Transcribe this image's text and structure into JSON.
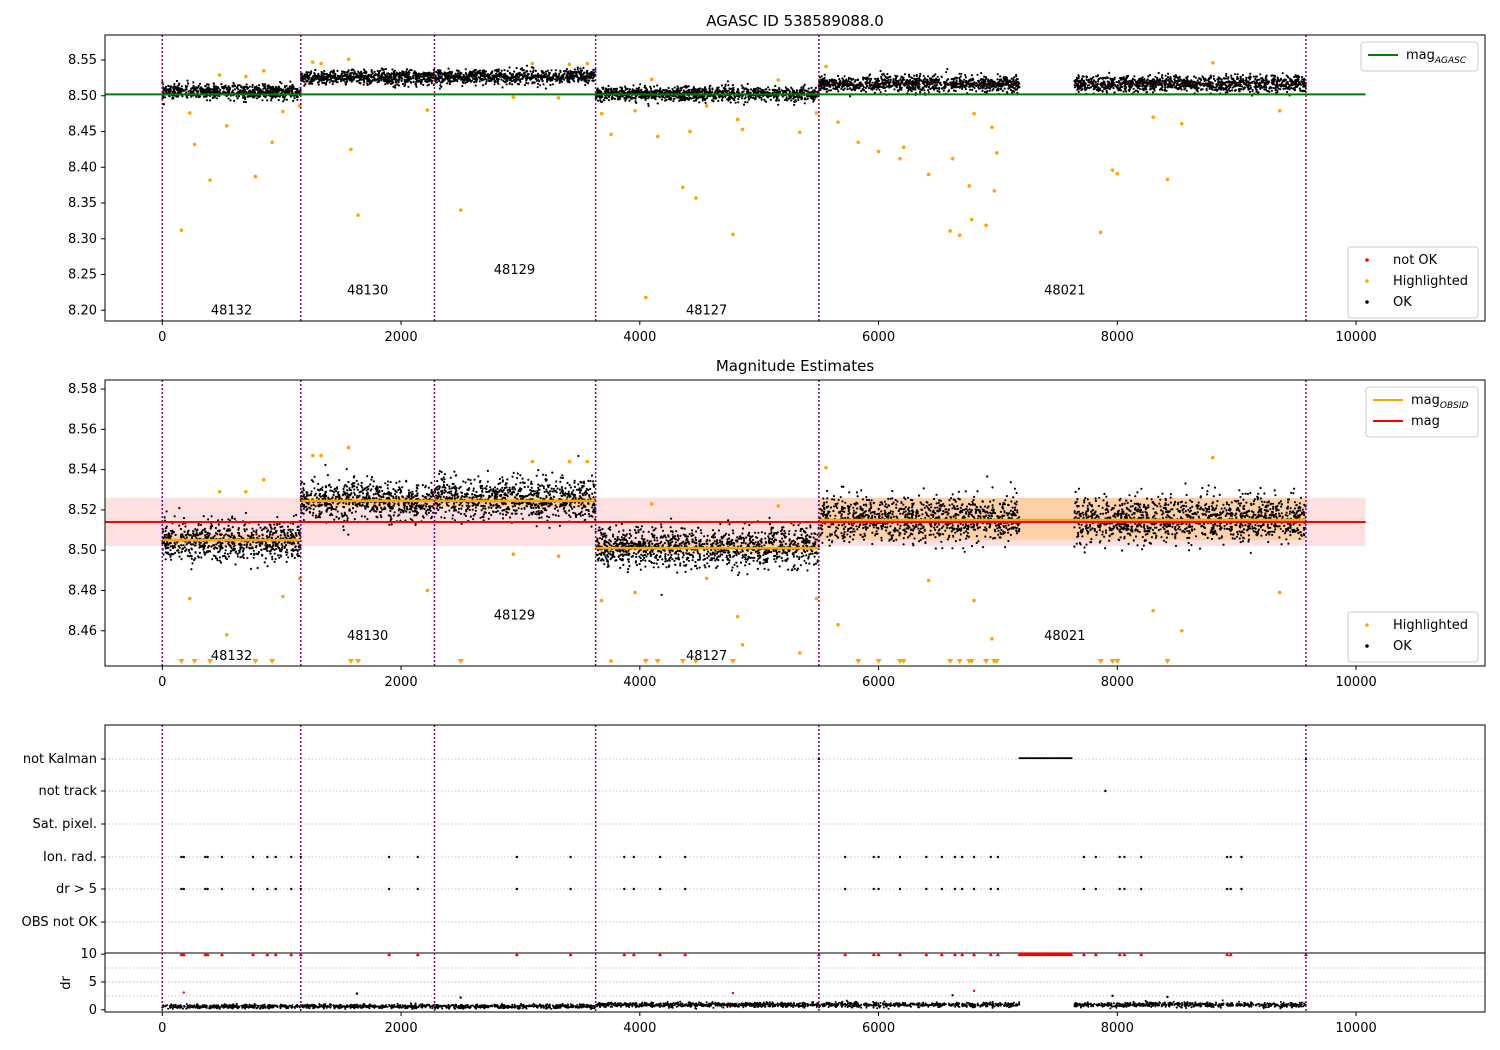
{
  "chart_data": [
    {
      "type": "scatter",
      "title": "AGASC ID 538589088.0",
      "xlabel": "",
      "ylabel": "",
      "xlim": [
        -480,
        11080
      ],
      "ylim": [
        8.185,
        8.585
      ],
      "xticks": [
        0,
        2000,
        4000,
        6000,
        8000,
        10000
      ],
      "yticks": [
        8.2,
        8.25,
        8.3,
        8.35,
        8.4,
        8.45,
        8.5,
        8.55
      ],
      "obsid_boundaries": [
        0,
        1160,
        2280,
        3630,
        5500,
        9580
      ],
      "obsid_labels": [
        {
          "label": "48132",
          "x": 580,
          "y": 8.2
        },
        {
          "label": "48130",
          "x": 1720,
          "y": 8.228
        },
        {
          "label": "48129",
          "x": 2950,
          "y": 8.256
        },
        {
          "label": "48127",
          "x": 4560,
          "y": 8.2
        },
        {
          "label": "48021",
          "x": 7560,
          "y": 8.228
        }
      ],
      "lines": [
        {
          "name": "mag",
          "name_sub": "AGASC",
          "color": "#008000",
          "x": [
            -480,
            10080
          ],
          "y": [
            8.502,
            8.502
          ]
        }
      ],
      "ok_segments": [
        {
          "x0": 0,
          "x1": 1160,
          "center": 8.504,
          "spread": 0.009
        },
        {
          "x0": 1160,
          "x1": 2280,
          "center": 8.524,
          "spread": 0.009
        },
        {
          "x0": 2280,
          "x1": 3630,
          "center": 8.525,
          "spread": 0.009
        },
        {
          "x0": 3630,
          "x1": 5500,
          "center": 8.501,
          "spread": 0.009
        },
        {
          "x0": 5500,
          "x1": 7180,
          "center": 8.515,
          "spread": 0.01
        },
        {
          "x0": 7640,
          "x1": 9580,
          "center": 8.515,
          "spread": 0.01
        }
      ],
      "highlighted_points": [
        {
          "x": 160,
          "y": 8.312
        },
        {
          "x": 230,
          "y": 8.476
        },
        {
          "x": 270,
          "y": 8.432
        },
        {
          "x": 400,
          "y": 8.382
        },
        {
          "x": 480,
          "y": 8.529
        },
        {
          "x": 540,
          "y": 8.458
        },
        {
          "x": 700,
          "y": 8.527
        },
        {
          "x": 780,
          "y": 8.387
        },
        {
          "x": 850,
          "y": 8.535
        },
        {
          "x": 920,
          "y": 8.435
        },
        {
          "x": 1010,
          "y": 8.478
        },
        {
          "x": 1150,
          "y": 8.486
        },
        {
          "x": 1260,
          "y": 8.547
        },
        {
          "x": 1330,
          "y": 8.545
        },
        {
          "x": 1560,
          "y": 8.551
        },
        {
          "x": 1580,
          "y": 8.425
        },
        {
          "x": 1640,
          "y": 8.333
        },
        {
          "x": 2220,
          "y": 8.48
        },
        {
          "x": 2500,
          "y": 8.34
        },
        {
          "x": 2940,
          "y": 8.498
        },
        {
          "x": 3100,
          "y": 8.545
        },
        {
          "x": 3320,
          "y": 8.497
        },
        {
          "x": 3410,
          "y": 8.544
        },
        {
          "x": 3560,
          "y": 8.545
        },
        {
          "x": 3680,
          "y": 8.475
        },
        {
          "x": 3760,
          "y": 8.446
        },
        {
          "x": 3960,
          "y": 8.479
        },
        {
          "x": 4050,
          "y": 8.218
        },
        {
          "x": 4100,
          "y": 8.523
        },
        {
          "x": 4150,
          "y": 8.443
        },
        {
          "x": 4360,
          "y": 8.372
        },
        {
          "x": 4420,
          "y": 8.45
        },
        {
          "x": 4470,
          "y": 8.357
        },
        {
          "x": 4560,
          "y": 8.486
        },
        {
          "x": 4780,
          "y": 8.306
        },
        {
          "x": 4820,
          "y": 8.467
        },
        {
          "x": 4860,
          "y": 8.453
        },
        {
          "x": 5160,
          "y": 8.522
        },
        {
          "x": 5340,
          "y": 8.449
        },
        {
          "x": 5480,
          "y": 8.476
        },
        {
          "x": 5560,
          "y": 8.541
        },
        {
          "x": 5660,
          "y": 8.463
        },
        {
          "x": 5830,
          "y": 8.435
        },
        {
          "x": 6000,
          "y": 8.422
        },
        {
          "x": 6180,
          "y": 8.412
        },
        {
          "x": 6210,
          "y": 8.428
        },
        {
          "x": 6420,
          "y": 8.39
        },
        {
          "x": 6600,
          "y": 8.311
        },
        {
          "x": 6620,
          "y": 8.412
        },
        {
          "x": 6680,
          "y": 8.305
        },
        {
          "x": 6760,
          "y": 8.374
        },
        {
          "x": 6780,
          "y": 8.327
        },
        {
          "x": 6800,
          "y": 8.475
        },
        {
          "x": 6900,
          "y": 8.319
        },
        {
          "x": 6950,
          "y": 8.456
        },
        {
          "x": 6970,
          "y": 8.367
        },
        {
          "x": 6990,
          "y": 8.42
        },
        {
          "x": 7860,
          "y": 8.309
        },
        {
          "x": 7960,
          "y": 8.396
        },
        {
          "x": 8000,
          "y": 8.391
        },
        {
          "x": 8300,
          "y": 8.47
        },
        {
          "x": 8420,
          "y": 8.383
        },
        {
          "x": 8540,
          "y": 8.461
        },
        {
          "x": 8800,
          "y": 8.546
        },
        {
          "x": 9360,
          "y": 8.479
        }
      ],
      "legends": [
        {
          "placement": "upper-right",
          "entries": [
            {
              "label": "mag",
              "sub": "AGASC",
              "kind": "line",
              "color": "#008000"
            }
          ]
        },
        {
          "placement": "lower-right",
          "entries": [
            {
              "label": "not OK",
              "kind": "dot",
              "color": "#ff0000"
            },
            {
              "label": "Highlighted",
              "kind": "dot",
              "color": "#ffa500"
            },
            {
              "label": "OK",
              "kind": "dot",
              "color": "#000000"
            }
          ]
        }
      ],
      "grid": false
    },
    {
      "type": "scatter",
      "title": "Magnitude Estimates",
      "xlabel": "",
      "ylabel": "",
      "xlim": [
        -480,
        11080
      ],
      "ylim": [
        8.4425,
        8.5845
      ],
      "xticks": [
        0,
        2000,
        4000,
        6000,
        8000,
        10000
      ],
      "yticks": [
        8.46,
        8.48,
        8.5,
        8.52,
        8.54,
        8.56,
        8.58
      ],
      "obsid_boundaries": [
        0,
        1160,
        2280,
        3630,
        5500,
        9580
      ],
      "obsid_labels": [
        {
          "label": "48132",
          "x": 580,
          "y": 8.4475
        },
        {
          "label": "48130",
          "x": 1720,
          "y": 8.4575
        },
        {
          "label": "48129",
          "x": 2950,
          "y": 8.4675
        },
        {
          "label": "48127",
          "x": 4560,
          "y": 8.4475
        },
        {
          "label": "48021",
          "x": 7560,
          "y": 8.4575
        }
      ],
      "mag_band": {
        "x0": -480,
        "x1": 10080,
        "y0": 8.502,
        "y1": 8.526,
        "color": "#ffcccc"
      },
      "lines": [
        {
          "name": "mag",
          "color": "#ff0000",
          "x": [
            -480,
            10080
          ],
          "y": [
            8.514,
            8.514
          ]
        }
      ],
      "obsid_mag": [
        {
          "x0": 0,
          "x1": 1160,
          "mag": 8.505,
          "band": [
            8.502,
            8.508
          ]
        },
        {
          "x0": 1160,
          "x1": 3630,
          "mag": 8.5245,
          "band": [
            8.5215,
            8.5275
          ]
        },
        {
          "x0": 3630,
          "x1": 5500,
          "mag": 8.501,
          "band": [
            8.498,
            8.504
          ]
        },
        {
          "x0": 5500,
          "x1": 9580,
          "mag": 8.515,
          "band": [
            8.505,
            8.526
          ]
        }
      ],
      "ok_segments": [
        {
          "x0": 0,
          "x1": 1160,
          "center": 8.504,
          "spread": 0.009
        },
        {
          "x0": 1160,
          "x1": 2280,
          "center": 8.524,
          "spread": 0.009
        },
        {
          "x0": 2280,
          "x1": 3630,
          "center": 8.525,
          "spread": 0.009
        },
        {
          "x0": 3630,
          "x1": 5500,
          "center": 8.501,
          "spread": 0.009
        },
        {
          "x0": 5500,
          "x1": 7180,
          "center": 8.515,
          "spread": 0.01
        },
        {
          "x0": 7640,
          "x1": 9580,
          "center": 8.515,
          "spread": 0.01
        }
      ],
      "highlighted_points": [
        {
          "x": 230,
          "y": 8.476
        },
        {
          "x": 480,
          "y": 8.529
        },
        {
          "x": 540,
          "y": 8.458
        },
        {
          "x": 700,
          "y": 8.529
        },
        {
          "x": 850,
          "y": 8.535
        },
        {
          "x": 1010,
          "y": 8.477
        },
        {
          "x": 1150,
          "y": 8.486
        },
        {
          "x": 1260,
          "y": 8.547
        },
        {
          "x": 1330,
          "y": 8.547
        },
        {
          "x": 1560,
          "y": 8.551
        },
        {
          "x": 2220,
          "y": 8.48
        },
        {
          "x": 2940,
          "y": 8.498
        },
        {
          "x": 3100,
          "y": 8.544
        },
        {
          "x": 3320,
          "y": 8.497
        },
        {
          "x": 3410,
          "y": 8.544
        },
        {
          "x": 3560,
          "y": 8.544
        },
        {
          "x": 3680,
          "y": 8.475
        },
        {
          "x": 3760,
          "y": 8.445
        },
        {
          "x": 3960,
          "y": 8.479
        },
        {
          "x": 4100,
          "y": 8.523
        },
        {
          "x": 4560,
          "y": 8.486
        },
        {
          "x": 4820,
          "y": 8.467
        },
        {
          "x": 4860,
          "y": 8.453
        },
        {
          "x": 5160,
          "y": 8.522
        },
        {
          "x": 5340,
          "y": 8.449
        },
        {
          "x": 5480,
          "y": 8.476
        },
        {
          "x": 5560,
          "y": 8.541
        },
        {
          "x": 5660,
          "y": 8.463
        },
        {
          "x": 6420,
          "y": 8.485
        },
        {
          "x": 6800,
          "y": 8.475
        },
        {
          "x": 6950,
          "y": 8.456
        },
        {
          "x": 8300,
          "y": 8.47
        },
        {
          "x": 8540,
          "y": 8.46
        },
        {
          "x": 8800,
          "y": 8.546
        },
        {
          "x": 9360,
          "y": 8.479
        }
      ],
      "below_range_x": [
        160,
        270,
        400,
        780,
        920,
        1580,
        1640,
        2500,
        4050,
        4150,
        4360,
        4470,
        4780,
        5830,
        6000,
        6180,
        6210,
        6600,
        6680,
        6760,
        6780,
        6900,
        6970,
        6990,
        7860,
        7960,
        8000,
        8420
      ],
      "legends": [
        {
          "placement": "upper-right",
          "entries": [
            {
              "label": "mag",
              "sub": "OBSID",
              "kind": "line",
              "color": "#ffa500"
            },
            {
              "label": "mag",
              "kind": "line",
              "color": "#ff0000"
            }
          ]
        },
        {
          "placement": "lower-right",
          "entries": [
            {
              "label": "Highlighted",
              "kind": "dot",
              "color": "#ffa500"
            },
            {
              "label": "OK",
              "kind": "dot",
              "color": "#000000"
            }
          ]
        }
      ],
      "grid": false
    },
    {
      "type": "scatter",
      "title": "",
      "xlabel": "",
      "ylabel": "",
      "xlim": [
        -480,
        11080
      ],
      "categories": [
        "not Kalman",
        "not track",
        "Sat. pixel.",
        "Ion. rad.",
        "dr > 5",
        "OBS not OK"
      ],
      "obsid_boundaries": [
        0,
        1160,
        2280,
        3630,
        5500,
        9580
      ],
      "flags": {
        "not Kalman": {
          "range": [
            7180,
            7620
          ],
          "x": [
            5500,
            9580
          ]
        },
        "not track": {
          "x": [
            7900
          ]
        },
        "Sat. pixel.": {
          "x": []
        },
        "Ion. rad.": {
          "x": [
            160,
            180,
            360,
            380,
            500,
            760,
            880,
            950,
            1080,
            1160,
            1900,
            2140,
            2970,
            3420,
            3870,
            3950,
            4170,
            4380,
            5720,
            5960,
            6000,
            6180,
            6400,
            6530,
            6640,
            6700,
            6800,
            6940,
            7000,
            7720,
            7820,
            8020,
            8060,
            8200,
            8920,
            8950,
            9040
          ]
        },
        "dr > 5": {
          "x": [
            160,
            180,
            360,
            380,
            500,
            760,
            880,
            950,
            1080,
            1160,
            1900,
            2140,
            2970,
            3420,
            3870,
            3950,
            4170,
            4380,
            5720,
            5960,
            6000,
            6180,
            6400,
            6530,
            6640,
            6700,
            6800,
            6940,
            7000,
            7720,
            7820,
            8020,
            8060,
            8200,
            8920,
            8950,
            9040
          ]
        },
        "OBS not OK": {
          "x": []
        }
      },
      "grid": "horizontal-dotted"
    },
    {
      "type": "scatter",
      "title": "",
      "xlabel": "",
      "ylabel": "dr",
      "xlim": [
        -480,
        11080
      ],
      "ylim": [
        -0.4,
        10.2
      ],
      "xticks": [
        0,
        2000,
        4000,
        6000,
        8000,
        10000
      ],
      "yticks": [
        0,
        5,
        10
      ],
      "obsid_boundaries": [
        0,
        1160,
        2280,
        3630,
        5500,
        9580
      ],
      "dr_segments": [
        {
          "x0": 0,
          "x1": 3630,
          "center": 0.45,
          "spread": 0.3
        },
        {
          "x0": 3630,
          "x1": 7180,
          "center": 0.75,
          "spread": 0.35
        },
        {
          "x0": 7640,
          "x1": 9580,
          "center": 0.75,
          "spread": 0.35
        }
      ],
      "dr_outliers": [
        {
          "x": 180,
          "y": 3.1,
          "color": "#ff0000"
        },
        {
          "x": 1630,
          "y": 2.9,
          "color": "#000000"
        },
        {
          "x": 2500,
          "y": 2.2,
          "color": "#000000"
        },
        {
          "x": 4780,
          "y": 3.0,
          "color": "#ff0000"
        },
        {
          "x": 6620,
          "y": 2.6,
          "color": "#000000"
        },
        {
          "x": 6800,
          "y": 3.4,
          "color": "#ff0000"
        },
        {
          "x": 7960,
          "y": 2.5,
          "color": "#000000"
        },
        {
          "x": 8420,
          "y": 2.3,
          "color": "#000000"
        }
      ],
      "clipped_at": 10,
      "clipped_x": [
        160,
        180,
        360,
        380,
        500,
        760,
        880,
        950,
        1080,
        1160,
        1900,
        2140,
        2970,
        3420,
        3870,
        3950,
        4170,
        4380,
        5500,
        5720,
        5960,
        6000,
        6180,
        6400,
        6530,
        6640,
        6700,
        6800,
        6940,
        7000,
        7720,
        7820,
        8020,
        8060,
        8200,
        8920,
        8950,
        9580
      ],
      "clipped_range": [
        7180,
        7620
      ],
      "grid": "horizontal-dotted"
    }
  ]
}
